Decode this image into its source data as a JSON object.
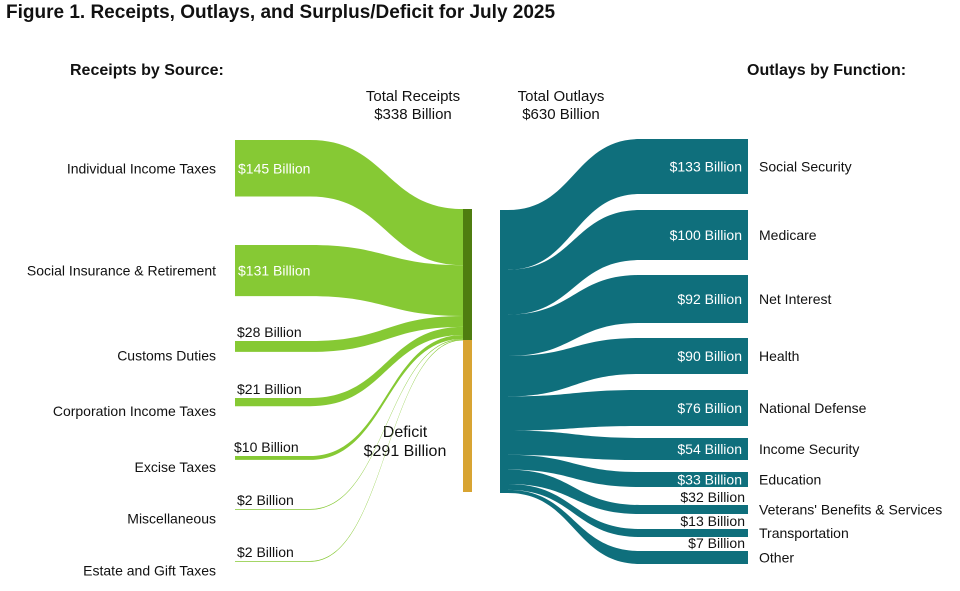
{
  "title": "Figure 1. Receipts, Outlays, and Surplus/Deficit for July 2025",
  "receipts_header": "Receipts by Source:",
  "outlays_header": "Outlays by Function:",
  "total_receipts": {
    "label": "Total Receipts",
    "value": "$338 Billion"
  },
  "total_outlays": {
    "label": "Total Outlays",
    "value": "$630 Billion"
  },
  "deficit": {
    "label": "Deficit",
    "value": "$291 Billion"
  },
  "colors": {
    "receipts": "#86c934",
    "receipts_node": "#4f7d10",
    "deficit": "#d8a432",
    "outlays": "#0f6f7c"
  },
  "chart_data": {
    "type": "sankey",
    "units": "Billion USD",
    "receipts": [
      {
        "name": "Individual Income Taxes",
        "value": 145,
        "label": "$145 Billion"
      },
      {
        "name": "Social Insurance & Retirement",
        "value": 131,
        "label": "$131 Billion"
      },
      {
        "name": "Customs Duties",
        "value": 28,
        "label": "$28 Billion"
      },
      {
        "name": "Corporation Income Taxes",
        "value": 21,
        "label": "$21 Billion"
      },
      {
        "name": "Excise Taxes",
        "value": 10,
        "label": "$10 Billion"
      },
      {
        "name": "Miscellaneous",
        "value": 2,
        "label": "$2 Billion"
      },
      {
        "name": "Estate and Gift Taxes",
        "value": 2,
        "label": "$2 Billion"
      }
    ],
    "outlays": [
      {
        "name": "Social Security",
        "value": 133,
        "label": "$133 Billion"
      },
      {
        "name": "Medicare",
        "value": 100,
        "label": "$100 Billion"
      },
      {
        "name": "Net Interest",
        "value": 92,
        "label": "$92 Billion"
      },
      {
        "name": "Health",
        "value": 90,
        "label": "$90 Billion"
      },
      {
        "name": "National Defense",
        "value": 76,
        "label": "$76 Billion"
      },
      {
        "name": "Income Security",
        "value": 54,
        "label": "$54 Billion"
      },
      {
        "name": "Education",
        "value": 33,
        "label": "$33 Billion"
      },
      {
        "name": "Veterans' Benefits & Services",
        "value": 32,
        "label": "$32 Billion"
      },
      {
        "name": "Transportation",
        "value": 13,
        "label": "$13 Billion"
      },
      {
        "name": "Other",
        "value": 7,
        "label": "$7 Billion"
      }
    ],
    "total_receipts": 338,
    "total_outlays": 630,
    "deficit": 291
  }
}
